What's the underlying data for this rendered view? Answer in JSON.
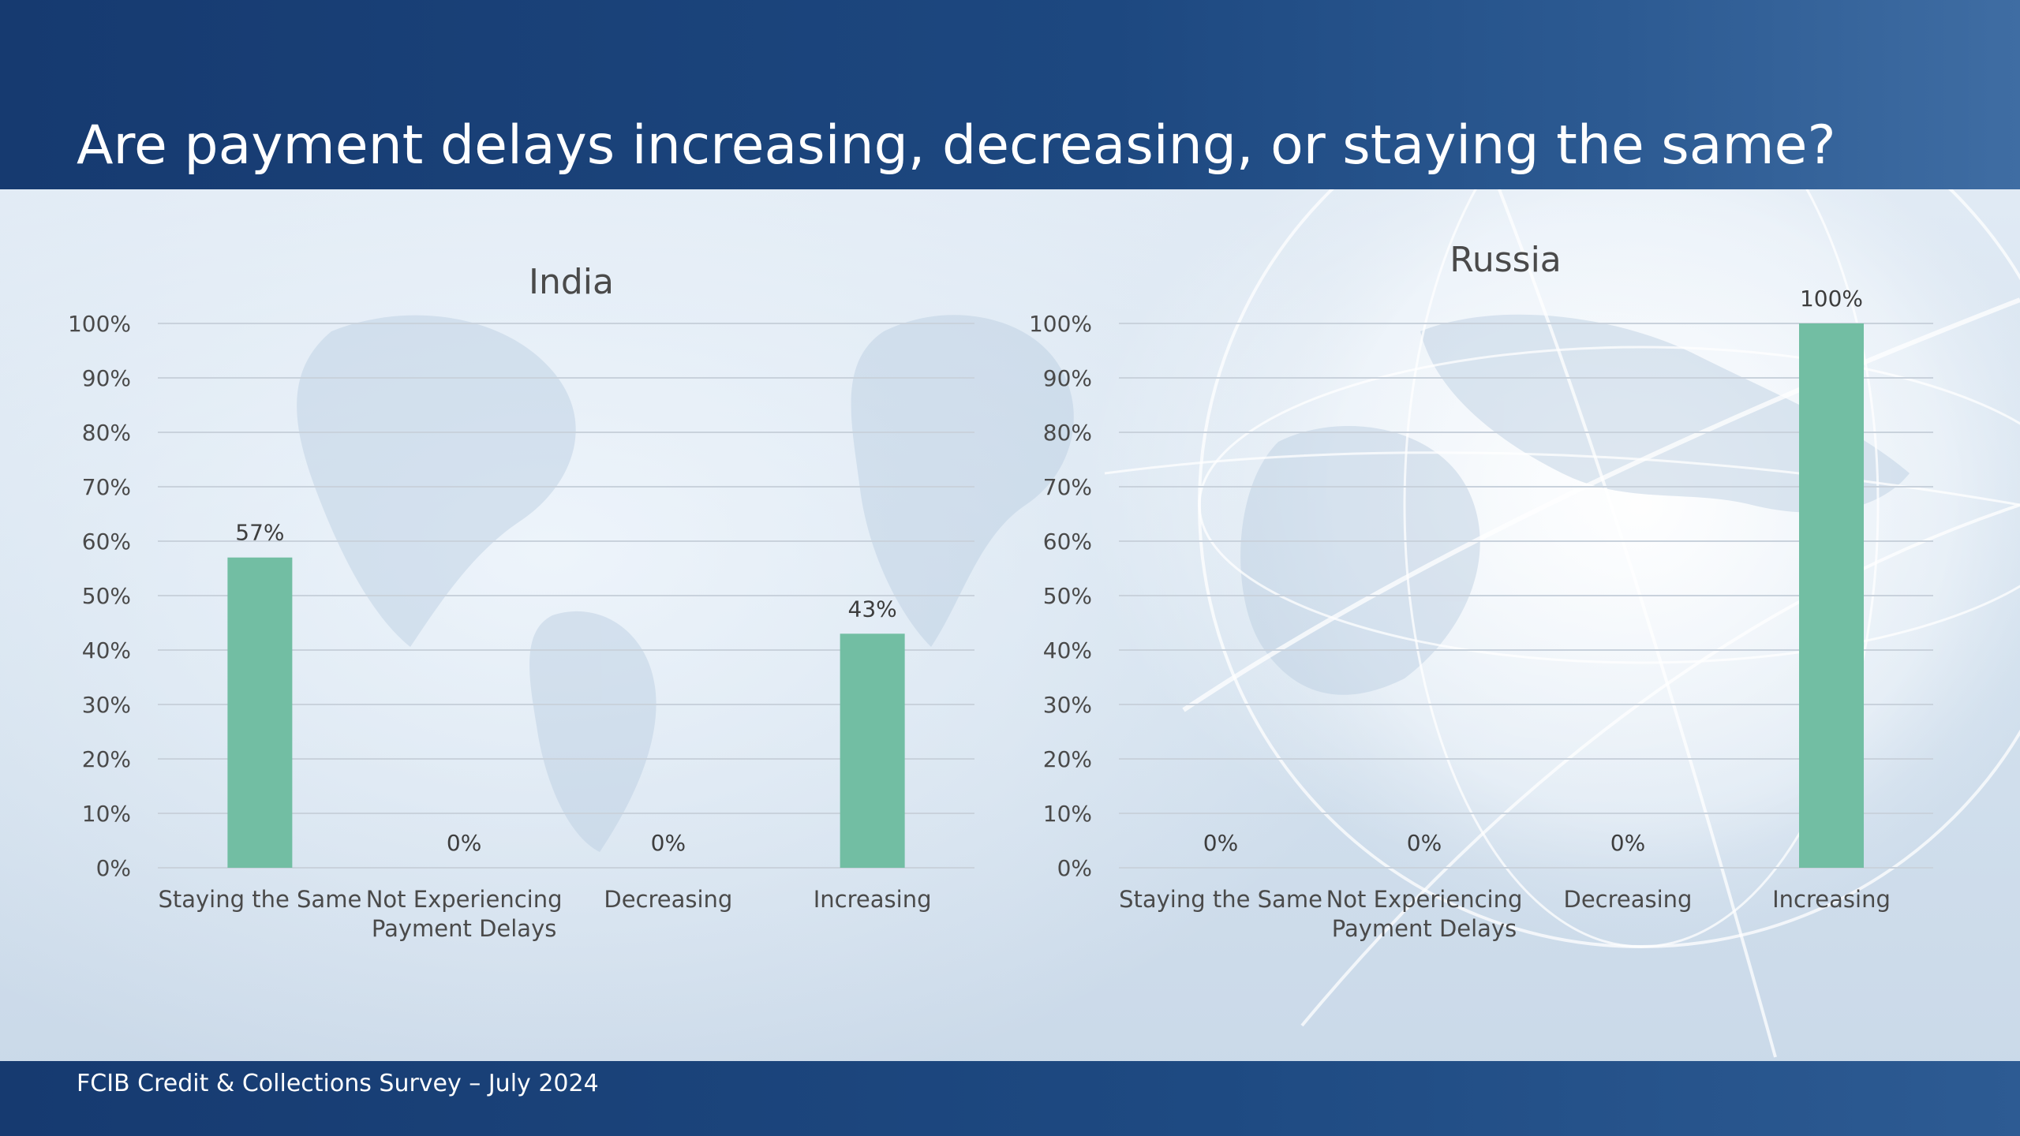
{
  "header": {
    "title": "Are payment delays increasing, decreasing, or staying the same?"
  },
  "footer": {
    "text": "FCIB Credit & Collections Survey – July 2024"
  },
  "colors": {
    "bar": "#72bea3",
    "header_band": "#1d4880",
    "grid": "#c9d2dc",
    "text": "#4a4a4a"
  },
  "chart_data": [
    {
      "type": "bar",
      "title": "India",
      "categories": [
        [
          "Staying the Same"
        ],
        [
          "Not Experiencing",
          "Payment Delays"
        ],
        [
          "Decreasing"
        ],
        [
          "Increasing"
        ]
      ],
      "values": [
        57,
        0,
        0,
        43
      ],
      "data_labels": [
        "57%",
        "0%",
        "0%",
        "43%"
      ],
      "y_ticks": [
        "0%",
        "10%",
        "20%",
        "30%",
        "40%",
        "50%",
        "60%",
        "70%",
        "80%",
        "90%",
        "100%"
      ],
      "ylim": [
        0,
        100
      ],
      "unit": "%",
      "grid": true,
      "legend": "none"
    },
    {
      "type": "bar",
      "title": "Russia",
      "categories": [
        [
          "Staying the Same"
        ],
        [
          "Not Experiencing",
          "Payment Delays"
        ],
        [
          "Decreasing"
        ],
        [
          "Increasing"
        ]
      ],
      "values": [
        0,
        0,
        0,
        100
      ],
      "data_labels": [
        "0%",
        "0%",
        "0%",
        "100%"
      ],
      "y_ticks": [
        "0%",
        "10%",
        "20%",
        "30%",
        "40%",
        "50%",
        "60%",
        "70%",
        "80%",
        "90%",
        "100%"
      ],
      "ylim": [
        0,
        100
      ],
      "unit": "%",
      "grid": true,
      "legend": "none"
    }
  ]
}
